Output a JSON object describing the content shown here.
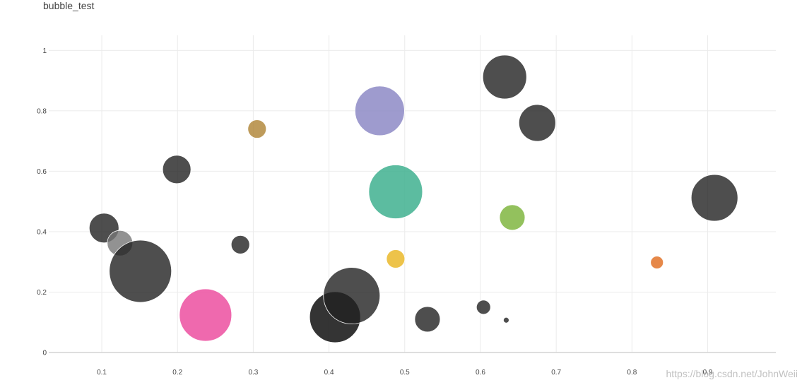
{
  "chart_data": {
    "type": "scatter",
    "title": "bubble_test",
    "xlabel": "",
    "ylabel": "",
    "xlim": [
      0.03,
      0.99
    ],
    "ylim": [
      0,
      1.05
    ],
    "x_ticks": [
      0.1,
      0.2,
      0.3,
      0.4,
      0.5,
      0.6,
      0.7,
      0.8,
      0.9
    ],
    "x_tick_labels": [
      "0.1",
      "0.2",
      "0.3",
      "0.4",
      "0.5",
      "0.6",
      "0.7",
      "0.8",
      "0.9"
    ],
    "y_ticks": [
      0,
      0.2,
      0.4,
      0.6,
      0.8,
      1
    ],
    "y_tick_labels": [
      "0",
      "0.2",
      "0.4",
      "0.6",
      "0.8",
      "1"
    ],
    "grid": true,
    "legend": "none",
    "points": [
      {
        "x": 0.103,
        "y": 0.412,
        "size": 21,
        "color": "#222222",
        "opacity": 0.8
      },
      {
        "x": 0.124,
        "y": 0.362,
        "size": 18,
        "color": "#777777",
        "opacity": 0.8
      },
      {
        "x": 0.151,
        "y": 0.269,
        "size": 44,
        "color": "#222222",
        "opacity": 0.8
      },
      {
        "x": 0.199,
        "y": 0.606,
        "size": 20,
        "color": "#222222",
        "opacity": 0.8
      },
      {
        "x": 0.237,
        "y": 0.124,
        "size": 37,
        "color": "#ec4fa0",
        "opacity": 0.85
      },
      {
        "x": 0.283,
        "y": 0.357,
        "size": 13,
        "color": "#222222",
        "opacity": 0.8
      },
      {
        "x": 0.305,
        "y": 0.74,
        "size": 13,
        "color": "#b38a3e",
        "opacity": 0.85
      },
      {
        "x": 0.408,
        "y": 0.117,
        "size": 36,
        "color": "#111111",
        "opacity": 0.85
      },
      {
        "x": 0.43,
        "y": 0.188,
        "size": 40,
        "color": "#222222",
        "opacity": 0.8
      },
      {
        "x": 0.467,
        "y": 0.8,
        "size": 35,
        "color": "#8d89c5",
        "opacity": 0.85
      },
      {
        "x": 0.488,
        "y": 0.532,
        "size": 38,
        "color": "#40b08f",
        "opacity": 0.85
      },
      {
        "x": 0.488,
        "y": 0.31,
        "size": 13,
        "color": "#eab82a",
        "opacity": 0.85
      },
      {
        "x": 0.53,
        "y": 0.11,
        "size": 18,
        "color": "#222222",
        "opacity": 0.8
      },
      {
        "x": 0.604,
        "y": 0.15,
        "size": 10,
        "color": "#222222",
        "opacity": 0.8
      },
      {
        "x": 0.632,
        "y": 0.912,
        "size": 31,
        "color": "#222222",
        "opacity": 0.8
      },
      {
        "x": 0.634,
        "y": 0.107,
        "size": 4,
        "color": "#222222",
        "opacity": 0.8
      },
      {
        "x": 0.642,
        "y": 0.447,
        "size": 18,
        "color": "#78b234",
        "opacity": 0.8
      },
      {
        "x": 0.675,
        "y": 0.76,
        "size": 26,
        "color": "#222222",
        "opacity": 0.8
      },
      {
        "x": 0.833,
        "y": 0.298,
        "size": 9,
        "color": "#e06a1c",
        "opacity": 0.8
      },
      {
        "x": 0.909,
        "y": 0.512,
        "size": 33,
        "color": "#222222",
        "opacity": 0.8
      }
    ]
  },
  "watermark": "https://blog.csdn.net/JohnWeii"
}
